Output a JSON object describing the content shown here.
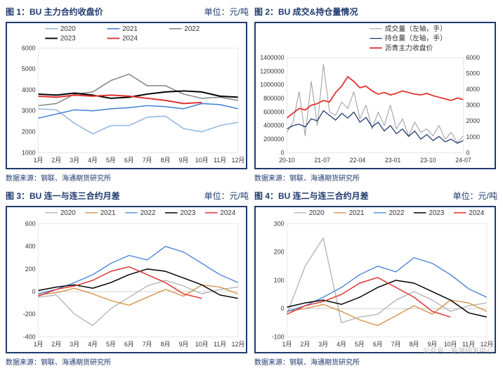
{
  "panels": [
    {
      "id": "chart1",
      "title_prefix": "图 1：",
      "title": "BU 主力合约收盘价",
      "unit": "单位：元/吨",
      "source": "数据来源：钢联、海通期货研究所",
      "type": "line",
      "x_labels": [
        "1月",
        "2月",
        "3月",
        "4月",
        "5月",
        "6月",
        "7月",
        "8月",
        "9月",
        "10月",
        "11月",
        "12月"
      ],
      "ylim": [
        1000,
        6000
      ],
      "ytick_step": 1000,
      "bg": "#ffffff",
      "frame": "#1f3a6e",
      "legend_pos": "top",
      "legend_cols": 3,
      "series": [
        {
          "name": "2020",
          "color": "#8fb4e0",
          "width": 1.5,
          "data": [
            3100,
            3050,
            2400,
            1900,
            2300,
            2300,
            2700,
            2750,
            2150,
            2000,
            2300,
            2450
          ]
        },
        {
          "name": "2021",
          "color": "#3d7dd6",
          "width": 1.5,
          "data": [
            2650,
            2850,
            3050,
            3000,
            3100,
            3150,
            3250,
            3200,
            3100,
            3350,
            3300,
            3100
          ]
        },
        {
          "name": "2022",
          "color": "#808080",
          "width": 1.5,
          "data": [
            3250,
            3350,
            3800,
            3900,
            4450,
            4750,
            4200,
            4200,
            3800,
            3600,
            3650,
            3500
          ]
        },
        {
          "name": "2023",
          "color": "#000000",
          "width": 2.0,
          "data": [
            3800,
            3750,
            3850,
            3750,
            3600,
            3650,
            3800,
            3900,
            3950,
            3900,
            3700,
            3650
          ]
        },
        {
          "name": "2024",
          "color": "#e03030",
          "width": 2.0,
          "data": [
            3700,
            3650,
            3750,
            3700,
            3750,
            3700,
            3600,
            3500,
            3350,
            3400,
            null,
            null
          ]
        }
      ]
    },
    {
      "id": "chart2",
      "title_prefix": "图 2：",
      "title": "BU 成交&持仓量情况",
      "unit": "",
      "source": "数据来源：钢联、海通期货研究所",
      "type": "line_dual",
      "x_labels": [
        "20-10",
        "21-07",
        "22-04",
        "23-01",
        "23-10",
        "24-07"
      ],
      "ylim": [
        0,
        1400000
      ],
      "ytick_step": 200000,
      "ylim2": [
        0,
        6000
      ],
      "ytick_step2": 1000,
      "bg": "#ffffff",
      "frame": "#1f3a6e",
      "legend_pos": "top-right",
      "legend_cols": 1,
      "series": [
        {
          "name": "成交量（左轴，手）",
          "color": "#999999",
          "width": 1.0,
          "axis": "left",
          "data": [
            300000,
            450000,
            900000,
            250000,
            1050000,
            400000,
            1300000,
            600000,
            550000,
            750000,
            650000,
            900000,
            500000,
            700000,
            350000,
            600000,
            400000,
            700000,
            350000,
            500000,
            250000,
            450000,
            300000,
            350000,
            250000,
            400000,
            200000,
            300000,
            150000,
            250000
          ]
        },
        {
          "name": "持仓量（左轴，手）",
          "color": "#1f3a6e",
          "width": 1.3,
          "axis": "left",
          "data": [
            350000,
            400000,
            420000,
            380000,
            500000,
            470000,
            620000,
            550000,
            480000,
            580000,
            510000,
            600000,
            450000,
            520000,
            380000,
            450000,
            320000,
            400000,
            280000,
            350000,
            240000,
            320000,
            200000,
            270000,
            180000,
            240000,
            160000,
            200000,
            140000,
            180000
          ]
        },
        {
          "name": "沥青主力收盘价",
          "color": "#e03030",
          "width": 1.8,
          "axis": "right",
          "data": [
            2200,
            2500,
            2800,
            2700,
            3000,
            3100,
            3300,
            3200,
            3800,
            4200,
            4800,
            4500,
            4100,
            4200,
            3900,
            3700,
            3800,
            3650,
            3750,
            3900,
            3800,
            3700,
            3650,
            3750,
            3600,
            3500,
            3400,
            3300,
            3450,
            3350
          ]
        }
      ]
    },
    {
      "id": "chart3",
      "title_prefix": "图 3：",
      "title": "BU 连一与连三合约月差",
      "unit": "单位：元/吨",
      "source": "数据来源：钢联、海通期货研究所",
      "type": "line",
      "x_labels": [
        "1月",
        "2月",
        "3月",
        "4月",
        "5月",
        "6月",
        "7月",
        "8月",
        "9月",
        "10月",
        "11月",
        "12月"
      ],
      "ylim": [
        -400,
        600
      ],
      "ytick_step": 200,
      "bg": "#ffffff",
      "frame": "#1f3a6e",
      "legend_pos": "top",
      "legend_cols": 5,
      "series": [
        {
          "name": "2020",
          "color": "#b0b0b0",
          "width": 1.3,
          "data": [
            -50,
            -30,
            -200,
            -300,
            -150,
            -50,
            50,
            100,
            50,
            -20,
            20,
            40
          ]
        },
        {
          "name": "2021",
          "color": "#d68a3a",
          "width": 1.3,
          "data": [
            -30,
            -10,
            30,
            -20,
            -80,
            -120,
            -50,
            20,
            -40,
            60,
            40,
            -20
          ]
        },
        {
          "name": "2022",
          "color": "#3d7dd6",
          "width": 1.3,
          "data": [
            -20,
            20,
            80,
            150,
            250,
            320,
            280,
            400,
            350,
            250,
            150,
            80
          ]
        },
        {
          "name": "2023",
          "color": "#000000",
          "width": 1.5,
          "data": [
            10,
            40,
            60,
            30,
            80,
            150,
            200,
            180,
            120,
            60,
            -30,
            -60
          ]
        },
        {
          "name": "2024",
          "color": "#e03030",
          "width": 1.5,
          "data": [
            -40,
            20,
            50,
            100,
            180,
            220,
            150,
            80,
            -20,
            -60,
            null,
            null
          ]
        }
      ]
    },
    {
      "id": "chart4",
      "title_prefix": "图 4：",
      "title": "BU 连二与连三合约月差",
      "unit": "单位：元/吨",
      "source": "数据来源：钢联、海通期货研究所",
      "type": "line",
      "x_labels": [
        "1月",
        "2月",
        "3月",
        "4月",
        "5月",
        "6月",
        "7月",
        "8月",
        "9月",
        "10月",
        "11月",
        "12月"
      ],
      "ylim": [
        -100,
        300
      ],
      "ytick_step": 100,
      "bg": "#ffffff",
      "frame": "#1f3a6e",
      "legend_pos": "top",
      "legend_cols": 5,
      "series": [
        {
          "name": "2020",
          "color": "#b0b0b0",
          "width": 1.3,
          "data": [
            -20,
            150,
            250,
            -50,
            -30,
            -20,
            30,
            60,
            30,
            -10,
            10,
            20
          ]
        },
        {
          "name": "2021",
          "color": "#d68a3a",
          "width": 1.3,
          "data": [
            -10,
            0,
            15,
            -10,
            -40,
            -60,
            -25,
            10,
            -20,
            30,
            20,
            -10
          ]
        },
        {
          "name": "2022",
          "color": "#3d7dd6",
          "width": 1.3,
          "data": [
            -10,
            10,
            40,
            75,
            120,
            150,
            130,
            180,
            160,
            120,
            70,
            40
          ]
        },
        {
          "name": "2023",
          "color": "#000000",
          "width": 1.5,
          "data": [
            5,
            20,
            30,
            15,
            40,
            75,
            100,
            90,
            60,
            30,
            -15,
            -30
          ]
        },
        {
          "name": "2024",
          "color": "#e03030",
          "width": 1.5,
          "data": [
            -20,
            10,
            25,
            50,
            90,
            110,
            75,
            40,
            -10,
            -30,
            null,
            null
          ]
        }
      ]
    }
  ],
  "watermark": "公众号：能源研发中心"
}
